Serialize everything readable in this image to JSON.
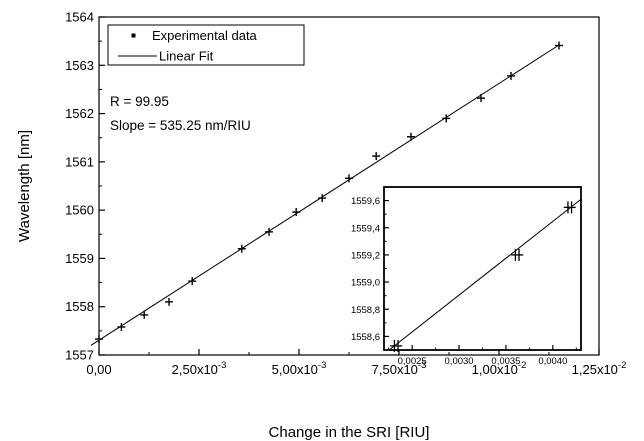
{
  "chart_data": [
    {
      "type": "scatter",
      "xlabel": "Change in the SRI [RIU]",
      "ylabel": "Wavelength [nm]",
      "xlim": [
        0,
        0.0125
      ],
      "ylim": [
        1557,
        1564
      ],
      "x_ticks": [
        0,
        0.0025,
        0.005,
        0.0075,
        0.01,
        0.0125
      ],
      "x_tick_labels": [
        {
          "mantissa": "0,00",
          "exp": ""
        },
        {
          "mantissa": "2,50x10",
          "exp": "-3"
        },
        {
          "mantissa": "5,00x10",
          "exp": "-3"
        },
        {
          "mantissa": "7,50x10",
          "exp": "-3"
        },
        {
          "mantissa": "1,00x10",
          "exp": "-2"
        },
        {
          "mantissa": "1,25x10",
          "exp": "-2"
        }
      ],
      "y_ticks": [
        1557,
        1558,
        1559,
        1560,
        1561,
        1562,
        1563,
        1564
      ],
      "y_tick_labels": [
        "1557",
        "1558",
        "1559",
        "1560",
        "1561",
        "1562",
        "1563",
        "1564"
      ],
      "legend": {
        "position": "top-left",
        "entries": [
          "Experimental data",
          "Linear Fit"
        ]
      },
      "annotations": [
        "R = 99.95",
        "Slope = 535.25 nm/RIU"
      ],
      "series": [
        {
          "name": "Experimental data",
          "marker": "plus",
          "points": [
            {
              "x": 0.0,
              "y": 1557.33
            },
            {
              "x": 0.00056,
              "y": 1557.58
            },
            {
              "x": 0.00113,
              "y": 1557.83
            },
            {
              "x": 0.00175,
              "y": 1558.1
            },
            {
              "x": 0.00233,
              "y": 1558.53
            },
            {
              "x": 0.00357,
              "y": 1559.2
            },
            {
              "x": 0.00425,
              "y": 1559.55
            },
            {
              "x": 0.00493,
              "y": 1559.96
            },
            {
              "x": 0.00558,
              "y": 1560.25
            },
            {
              "x": 0.00625,
              "y": 1560.66
            },
            {
              "x": 0.00693,
              "y": 1561.12
            },
            {
              "x": 0.0078,
              "y": 1561.52
            },
            {
              "x": 0.00868,
              "y": 1561.9
            },
            {
              "x": 0.00955,
              "y": 1562.32
            },
            {
              "x": 0.0103,
              "y": 1562.78
            },
            {
              "x": 0.0115,
              "y": 1563.41
            }
          ]
        },
        {
          "name": "Linear Fit",
          "line": {
            "x": [
              -0.0002,
              0.0115
            ],
            "y": [
              1557.2,
              1563.42
            ]
          }
        }
      ]
    },
    {
      "type": "scatter",
      "role": "inset",
      "xlim": [
        0.0022,
        0.0043
      ],
      "ylim": [
        1558.5,
        1559.7
      ],
      "x_ticks": [
        0.0025,
        0.003,
        0.0035,
        0.004
      ],
      "x_tick_labels": [
        "0,0025",
        "0,0030",
        "0,0035",
        "0,0040"
      ],
      "y_ticks": [
        1558.6,
        1558.8,
        1559.0,
        1559.2,
        1559.4,
        1559.6
      ],
      "y_tick_labels": [
        "1558,6",
        "1558,8",
        "1559,0",
        "1559,2",
        "1559,4",
        "1559,6"
      ],
      "series": [
        {
          "name": "Experimental data",
          "marker": "plus",
          "points": [
            {
              "x": 0.00233,
              "y": 1558.53
            },
            {
              "x": 0.00362,
              "y": 1559.2
            },
            {
              "x": 0.00418,
              "y": 1559.55
            }
          ]
        },
        {
          "name": "Linear Fit",
          "line": {
            "x": [
              0.0022,
              0.0043
            ],
            "y": [
              1558.47,
              1559.61
            ]
          }
        }
      ]
    }
  ]
}
